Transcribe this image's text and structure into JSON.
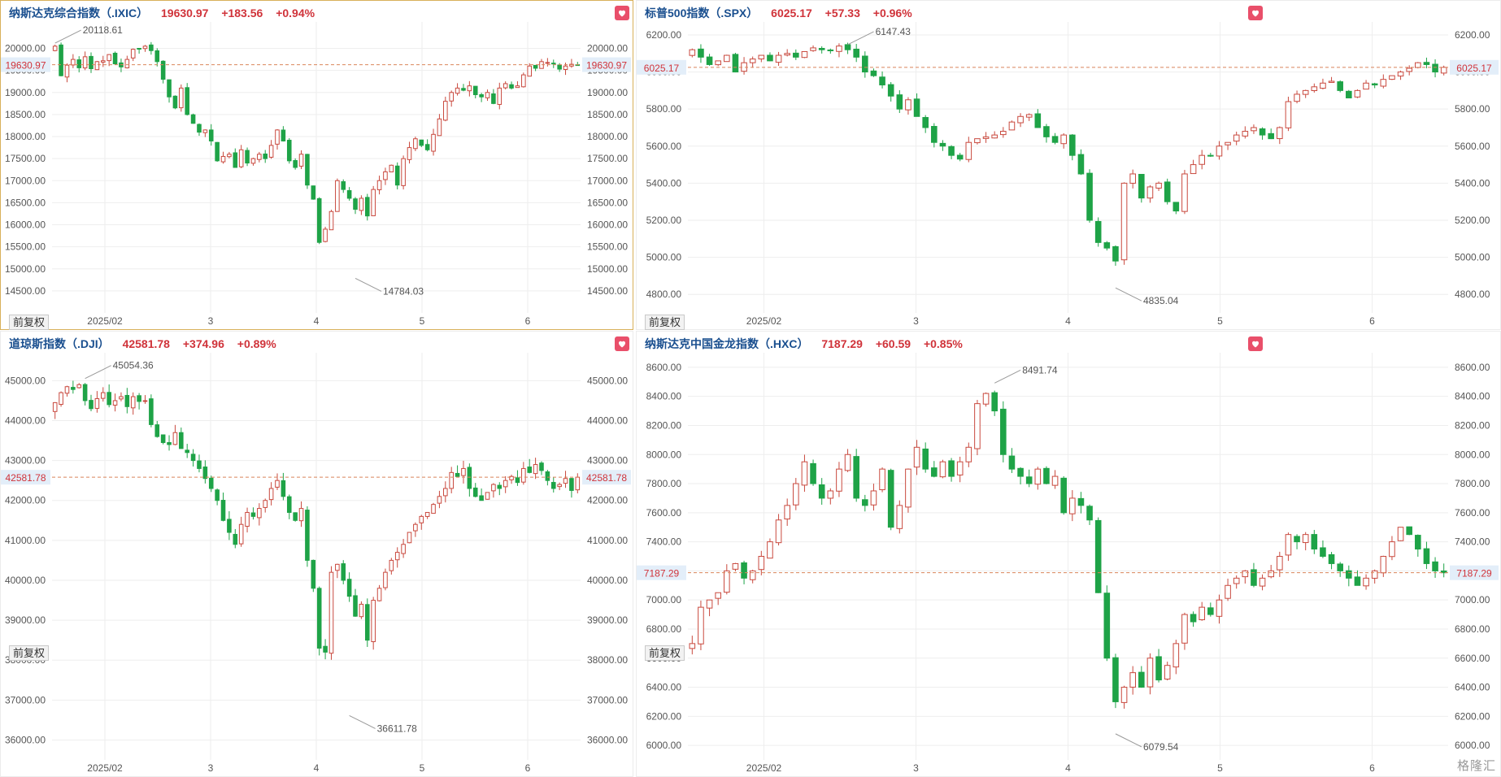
{
  "common": {
    "adjust_label": "前复权",
    "logo_text": "格隆汇"
  },
  "colors": {
    "up": "#c9493e",
    "down": "#1ea347",
    "grid": "#eeeeee",
    "ref_line": "#d9855b",
    "label_bg": "#e3eef9",
    "label_text": "#d0333a",
    "axis_text": "#555555"
  },
  "panels": [
    {
      "title": "纳斯达克综合指数（.IXIC）",
      "last": "19630.97",
      "change": "+183.56",
      "pct": "+0.94%"
    },
    {
      "title": "标普500指数（.SPX）",
      "last": "6025.17",
      "change": "+57.33",
      "pct": "+0.96%"
    },
    {
      "title": "道琼斯指数（.DJI）",
      "last": "42581.78",
      "change": "+374.96",
      "pct": "+0.89%"
    },
    {
      "title": "纳斯达克中国金龙指数（.HXC）",
      "last": "7187.29",
      "change": "+60.59",
      "pct": "+0.85%"
    }
  ],
  "chart_data": [
    {
      "type": "candlestick",
      "title": "纳斯达克综合指数（.IXIC）",
      "x_labels": [
        "2025/02",
        "3",
        "4",
        "5",
        "6"
      ],
      "x_label_pos": [
        10,
        30,
        50,
        70,
        90
      ],
      "ylim": [
        14000,
        20600
      ],
      "yticks": [
        14500,
        15000,
        15500,
        16000,
        16500,
        17000,
        17500,
        18000,
        18500,
        19000,
        19500,
        20000
      ],
      "tick_decimals": 2,
      "last": 19630.97,
      "last_label": "19630.97",
      "high_annot": {
        "label": "20118.61",
        "value": 20118.61,
        "index": 0
      },
      "low_annot": {
        "label": "14784.03",
        "value": 14784.03,
        "index": 50
      },
      "close": [
        20050,
        19380,
        19620,
        19750,
        19560,
        19810,
        19540,
        19700,
        19720,
        19860,
        19650,
        19580,
        19750,
        19980,
        20000,
        20050,
        19950,
        19700,
        19300,
        18900,
        18650,
        19100,
        18500,
        18300,
        18100,
        18150,
        17900,
        17450,
        17550,
        17600,
        17300,
        17700,
        17400,
        17500,
        17600,
        17500,
        17800,
        18150,
        17900,
        17450,
        17300,
        17600,
        16900,
        16580,
        15600,
        15900,
        16300,
        17000,
        16800,
        16600,
        16350,
        16600,
        16200,
        16800,
        17000,
        17200,
        17350,
        16900,
        17500,
        17750,
        17950,
        17800,
        17700,
        18050,
        18400,
        18800,
        19000,
        19100,
        19050,
        19150,
        18950,
        18900,
        19000,
        18750,
        19100,
        19200,
        19100,
        19150,
        19400,
        19600,
        19550,
        19700,
        19680,
        19650,
        19530,
        19600,
        19640,
        19630
      ]
    },
    {
      "type": "candlestick",
      "title": "标普500指数（.SPX）",
      "x_labels": [
        "2025/02",
        "3",
        "4",
        "5",
        "6"
      ],
      "x_label_pos": [
        10,
        30,
        50,
        70,
        90
      ],
      "ylim": [
        4700,
        6270
      ],
      "yticks": [
        4800,
        5000,
        5200,
        5400,
        5600,
        5800,
        6000,
        6200
      ],
      "tick_decimals": 2,
      "last": 6025.17,
      "last_label": "6025.17",
      "high_annot": {
        "label": "6147.43",
        "value": 6147.43,
        "index": 18
      },
      "low_annot": {
        "label": "4835.04",
        "value": 4835.04,
        "index": 49
      },
      "close": [
        6120,
        6080,
        6040,
        6060,
        6090,
        6000,
        6050,
        6070,
        6090,
        6060,
        6090,
        6100,
        6080,
        6110,
        6130,
        6120,
        6115,
        6140,
        6120,
        6080,
        6000,
        5980,
        5930,
        5870,
        5800,
        5850,
        5760,
        5700,
        5620,
        5600,
        5550,
        5530,
        5620,
        5640,
        5650,
        5660,
        5680,
        5730,
        5760,
        5770,
        5700,
        5650,
        5620,
        5660,
        5550,
        5450,
        5200,
        5080,
        5050,
        4980,
        5400,
        5450,
        5320,
        5380,
        5400,
        5300,
        5250,
        5450,
        5500,
        5550,
        5550,
        5600,
        5620,
        5660,
        5680,
        5700,
        5660,
        5640,
        5700,
        5840,
        5880,
        5900,
        5920,
        5940,
        5950,
        5900,
        5860,
        5900,
        5940,
        5930,
        5960,
        5980,
        6000,
        6020,
        6050,
        6040,
        6000,
        6025
      ]
    },
    {
      "type": "candlestick",
      "title": "道琼斯指数（.DJI）",
      "x_labels": [
        "2025/02",
        "3",
        "4",
        "5",
        "6"
      ],
      "x_label_pos": [
        10,
        30,
        50,
        70,
        90
      ],
      "ylim": [
        35500,
        45700
      ],
      "yticks": [
        36000,
        37000,
        38000,
        39000,
        40000,
        41000,
        42000,
        43000,
        44000,
        45000
      ],
      "tick_decimals": 2,
      "last": 42581.78,
      "last_label": "42581.78",
      "high_annot": {
        "label": "45054.36",
        "value": 45054.36,
        "index": 5
      },
      "low_annot": {
        "label": "36611.78",
        "value": 36611.78,
        "index": 49
      },
      "close": [
        44450,
        44700,
        44850,
        44780,
        44900,
        44500,
        44300,
        44550,
        44700,
        44400,
        44500,
        44600,
        44350,
        44600,
        44480,
        44500,
        43900,
        43600,
        43450,
        43400,
        43700,
        43300,
        43200,
        43000,
        42800,
        42550,
        42300,
        42000,
        41500,
        41200,
        40900,
        41400,
        41700,
        41600,
        41800,
        42000,
        42300,
        42500,
        42100,
        41700,
        41500,
        41800,
        40500,
        39800,
        38300,
        38200,
        40200,
        40400,
        40000,
        39600,
        39100,
        39400,
        38500,
        39500,
        39800,
        40200,
        40500,
        40700,
        40900,
        41200,
        41400,
        41600,
        41700,
        41900,
        42100,
        42300,
        42700,
        42600,
        42800,
        42300,
        42100,
        42000,
        42200,
        42400,
        42300,
        42500,
        42600,
        42450,
        42800,
        42700,
        42900,
        42750,
        42500,
        42300,
        42400,
        42550,
        42250,
        42582
      ]
    },
    {
      "type": "candlestick",
      "title": "纳斯达克中国金龙指数（.HXC）",
      "x_labels": [
        "2025/02",
        "3",
        "4",
        "5",
        "6"
      ],
      "x_label_pos": [
        10,
        30,
        50,
        70,
        90
      ],
      "ylim": [
        5900,
        8700
      ],
      "yticks": [
        6000,
        6200,
        6400,
        6600,
        6800,
        7000,
        7200,
        7400,
        7600,
        7800,
        8000,
        8200,
        8400,
        8600
      ],
      "tick_decimals": 2,
      "last": 7187.29,
      "last_label": "7187.29",
      "high_annot": {
        "label": "8491.74",
        "value": 8491.74,
        "index": 35
      },
      "low_annot": {
        "label": "6079.54",
        "value": 6079.54,
        "index": 49
      },
      "close": [
        6700,
        6950,
        7000,
        7050,
        7200,
        7250,
        7150,
        7200,
        7300,
        7400,
        7550,
        7650,
        7800,
        7950,
        7800,
        7700,
        7750,
        7900,
        8000,
        7700,
        7650,
        7750,
        7900,
        7500,
        7650,
        7900,
        8050,
        7900,
        7850,
        7950,
        7850,
        7950,
        8050,
        8350,
        8420,
        8300,
        8000,
        7900,
        7850,
        7800,
        7900,
        7800,
        7850,
        7600,
        7700,
        7650,
        7550,
        7050,
        6600,
        6300,
        6400,
        6500,
        6400,
        6600,
        6450,
        6550,
        6700,
        6900,
        6850,
        6950,
        6900,
        7000,
        7100,
        7150,
        7200,
        7100,
        7150,
        7200,
        7300,
        7450,
        7400,
        7450,
        7350,
        7300,
        7250,
        7200,
        7150,
        7100,
        7150,
        7200,
        7300,
        7400,
        7500,
        7450,
        7350,
        7250,
        7200,
        7187
      ]
    }
  ]
}
